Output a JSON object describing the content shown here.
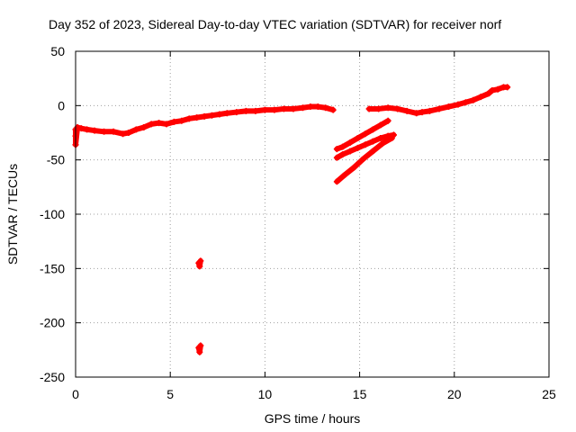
{
  "chart_data": {
    "type": "scatter",
    "title": "Day 352 of 2023, Sidereal Day-to-day VTEC variation (SDTVAR) for receiver norf",
    "xlabel": "GPS time / hours",
    "ylabel": "SDTVAR / TECUs",
    "xlim": [
      0,
      25
    ],
    "ylim": [
      -250,
      50
    ],
    "xticks": [
      0,
      5,
      10,
      15,
      20,
      25
    ],
    "yticks": [
      -250,
      -200,
      -150,
      -100,
      -50,
      0,
      50
    ],
    "grid": true,
    "legend": "none",
    "marker": "plus",
    "series": [
      {
        "name": "SDTVAR",
        "color": "#ff0000",
        "x": [
          0.0,
          0.0,
          0.0,
          0.1,
          0.3,
          0.6,
          1.0,
          1.5,
          2.0,
          2.5,
          2.8,
          3.2,
          3.6,
          4.0,
          4.4,
          4.8,
          5.2,
          5.6,
          6.0,
          6.4,
          6.8,
          7.2,
          7.6,
          8.0,
          8.5,
          9.0,
          9.5,
          10.0,
          10.5,
          11.0,
          11.5,
          12.0,
          12.4,
          12.8,
          13.2,
          13.6,
          13.8,
          14.1,
          14.5,
          14.9,
          15.3,
          15.7,
          16.1,
          16.5,
          13.8,
          14.1,
          14.5,
          14.9,
          15.3,
          15.7,
          16.1,
          16.5,
          16.8,
          13.8,
          14.2,
          14.7,
          15.2,
          15.7,
          16.2,
          16.7,
          15.5,
          16.0,
          16.5,
          17.0,
          17.5,
          18.0,
          18.3,
          18.7,
          19.2,
          19.7,
          20.2,
          20.6,
          21.0,
          21.4,
          21.8,
          22.0,
          22.3,
          22.6,
          22.8,
          6.5,
          6.55,
          6.6,
          6.5,
          6.55,
          6.6
        ],
        "y": [
          -22,
          -28,
          -36,
          -20,
          -21,
          -22,
          -23,
          -24,
          -24,
          -26,
          -25,
          -22,
          -20,
          -17,
          -16,
          -17,
          -15,
          -14,
          -12,
          -11,
          -10,
          -9,
          -8,
          -7,
          -6,
          -5,
          -5,
          -4,
          -4,
          -3,
          -3,
          -2,
          -1,
          -1,
          -2,
          -4,
          -40,
          -38,
          -34,
          -30,
          -26,
          -22,
          -18,
          -14,
          -48,
          -45,
          -42,
          -39,
          -36,
          -33,
          -30,
          -28,
          -27,
          -70,
          -64,
          -57,
          -49,
          -42,
          -35,
          -30,
          -3,
          -3,
          -2,
          -3,
          -5,
          -7,
          -6,
          -5,
          -3,
          -1,
          1,
          3,
          5,
          8,
          11,
          14,
          15,
          17,
          17,
          -145,
          -148,
          -143,
          -223,
          -227,
          -221
        ]
      }
    ]
  }
}
